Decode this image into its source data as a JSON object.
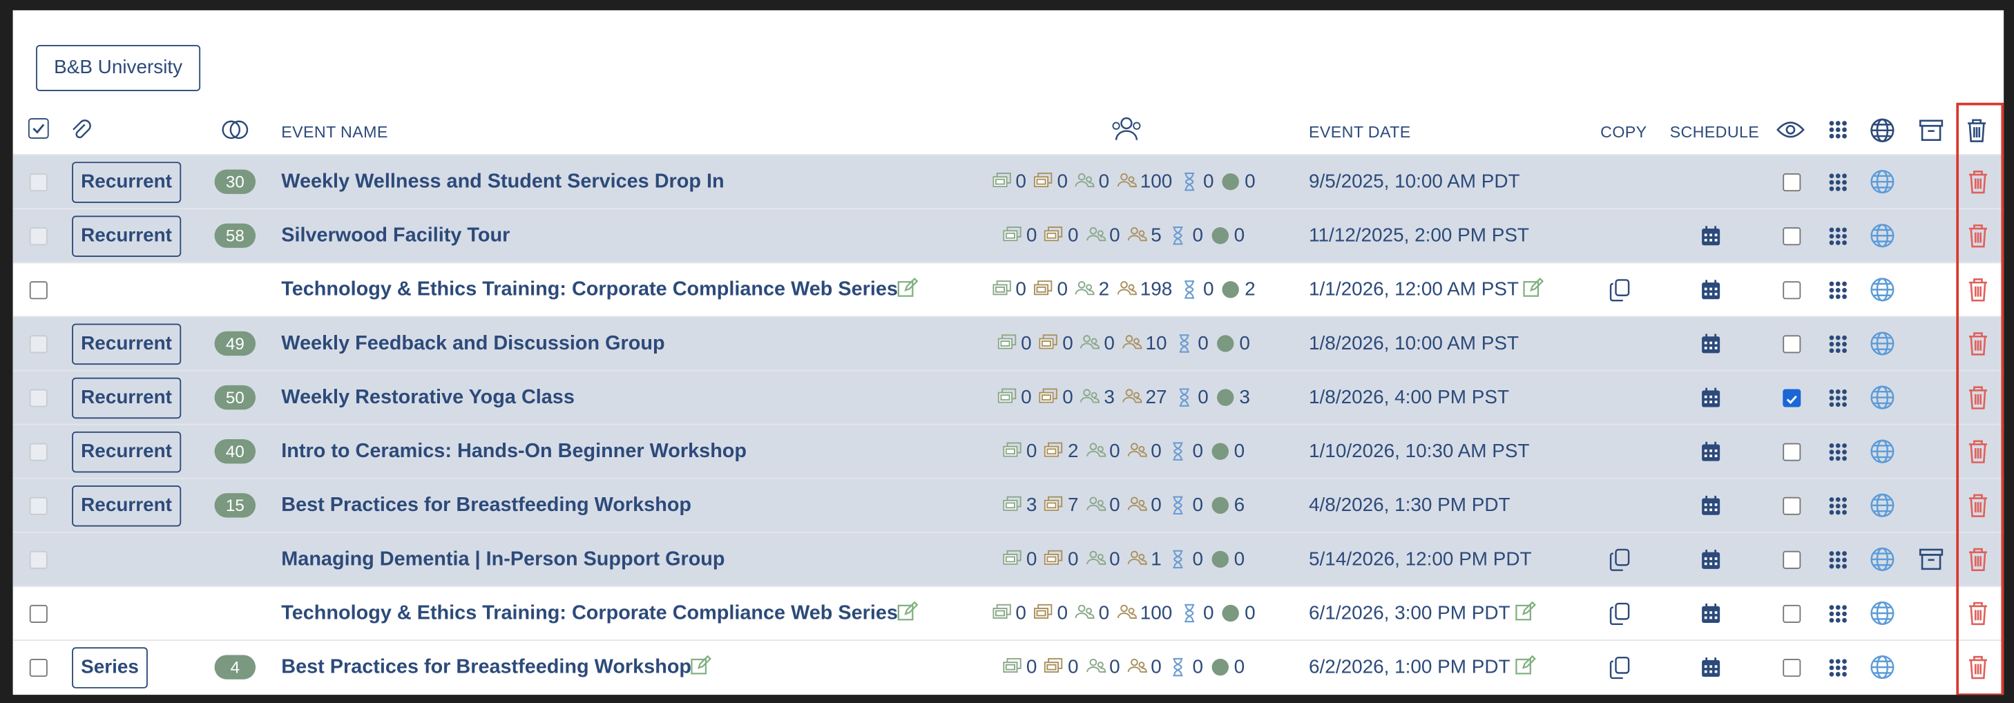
{
  "header": {
    "button": "B&B University"
  },
  "columns": {
    "event_name": "EVENT NAME",
    "event_date": "EVENT DATE",
    "copy": "COPY",
    "schedule": "SCHEDULE"
  },
  "rows": [
    {
      "tag": "Recurrent",
      "count": 30,
      "name": "Weekly Wellness and Student Services Drop In",
      "stats": [
        0,
        0,
        0,
        100,
        0,
        0
      ],
      "date": "9/5/2025, 10:00 AM PDT",
      "highlighted": true,
      "editable": false,
      "copy": false,
      "schedule": false,
      "checked": false,
      "archive": false
    },
    {
      "tag": "Recurrent",
      "count": 58,
      "name": "Silverwood Facility Tour",
      "stats": [
        0,
        0,
        0,
        5,
        0,
        0
      ],
      "date": "11/12/2025, 2:00 PM PST",
      "highlighted": true,
      "editable": false,
      "copy": false,
      "schedule": true,
      "checked": false,
      "archive": false
    },
    {
      "name": "Technology & Ethics Training: Corporate Compliance Web Series",
      "stats": [
        0,
        0,
        2,
        198,
        0,
        2
      ],
      "date": "1/1/2026, 12:00 AM PST",
      "highlighted": false,
      "editable": true,
      "copy": true,
      "schedule": true,
      "checked": false,
      "archive": false
    },
    {
      "tag": "Recurrent",
      "count": 49,
      "name": "Weekly Feedback and Discussion Group",
      "stats": [
        0,
        0,
        0,
        10,
        0,
        0
      ],
      "date": "1/8/2026, 10:00 AM PST",
      "highlighted": true,
      "editable": false,
      "copy": false,
      "schedule": true,
      "checked": false,
      "archive": false
    },
    {
      "tag": "Recurrent",
      "count": 50,
      "name": "Weekly Restorative Yoga Class",
      "stats": [
        0,
        0,
        3,
        27,
        0,
        3
      ],
      "date": "1/8/2026, 4:00 PM PST",
      "highlighted": true,
      "editable": false,
      "copy": false,
      "schedule": true,
      "checked": true,
      "archive": false
    },
    {
      "tag": "Recurrent",
      "count": 40,
      "name": "Intro to Ceramics: Hands-On Beginner Workshop",
      "stats": [
        0,
        2,
        0,
        0,
        0,
        0
      ],
      "date": "1/10/2026, 10:30 AM PST",
      "highlighted": true,
      "editable": false,
      "copy": false,
      "schedule": true,
      "checked": false,
      "archive": false
    },
    {
      "tag": "Recurrent",
      "count": 15,
      "name": "Best Practices for Breastfeeding Workshop",
      "stats": [
        3,
        7,
        0,
        0,
        0,
        6
      ],
      "date": "4/8/2026, 1:30 PM PDT",
      "highlighted": true,
      "editable": false,
      "copy": false,
      "schedule": true,
      "checked": false,
      "archive": false
    },
    {
      "name": "Managing Dementia | In-Person Support Group",
      "stats": [
        0,
        0,
        0,
        1,
        0,
        0
      ],
      "date": "5/14/2026, 12:00 PM PDT",
      "highlighted": true,
      "editable": false,
      "copy": true,
      "schedule": true,
      "checked": false,
      "archive": true
    },
    {
      "name": "Technology & Ethics Training: Corporate Compliance Web Series",
      "stats": [
        0,
        0,
        0,
        100,
        0,
        0
      ],
      "date": "6/1/2026, 3:00 PM PDT",
      "highlighted": false,
      "editable": true,
      "copy": true,
      "schedule": true,
      "checked": false,
      "archive": false
    },
    {
      "tag": "Series",
      "count": 4,
      "name": "Best Practices for Breastfeeding Workshop",
      "stats": [
        0,
        0,
        0,
        0,
        0,
        0
      ],
      "date": "6/2/2026, 1:00 PM PDT",
      "highlighted": false,
      "editable": true,
      "copy": true,
      "schedule": true,
      "checked": false,
      "archive": false
    }
  ]
}
